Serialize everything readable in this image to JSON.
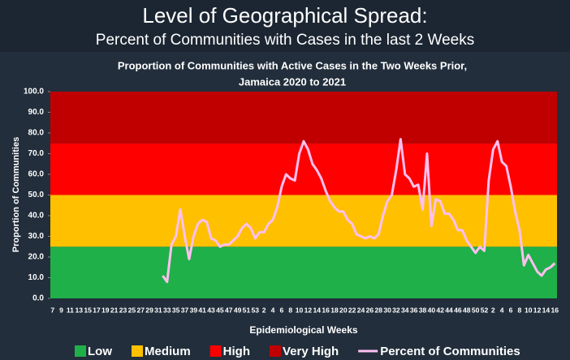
{
  "chart_data": {
    "type": "line",
    "title": "Level of Geographical Spread:",
    "subtitle": "Percent of Communities with Cases in the last 2 Weeks",
    "chart_title": [
      "Proportion of Communities with Active Cases in the Two Weeks Prior,",
      "Jamaica 2020 to 2021"
    ],
    "y_label": "Proportion of Communities",
    "x_label": "Epidemiological Weeks",
    "categories": [
      "7",
      null,
      "9",
      null,
      "11",
      null,
      "13",
      null,
      "15",
      null,
      "17",
      null,
      "19",
      null,
      "21",
      null,
      "23",
      null,
      "25",
      null,
      "27",
      null,
      "29",
      null,
      "31",
      null,
      "33",
      null,
      "35",
      null,
      "37",
      null,
      "39",
      null,
      "41",
      null,
      "43",
      null,
      "45",
      null,
      "47",
      null,
      "49",
      null,
      "51",
      null,
      "53",
      null,
      "2",
      null,
      "4",
      null,
      "6",
      null,
      "8",
      null,
      "10",
      null,
      "12",
      null,
      "14",
      null,
      "16",
      null,
      "18",
      null,
      "20",
      null,
      "22",
      null,
      "24",
      null,
      "26",
      null,
      "28",
      null,
      "30",
      null,
      "32",
      null,
      "34",
      null,
      "36",
      null,
      "38",
      null,
      "40",
      null,
      "42",
      null,
      "44",
      null,
      "46",
      null,
      "48",
      null,
      "50",
      null,
      "52",
      null,
      "2",
      null,
      "4",
      null,
      "6",
      null,
      "8",
      null,
      "10",
      null,
      "12",
      null,
      "14",
      null,
      "16"
    ],
    "series": [
      {
        "name": "Percent of Communities",
        "color": "#ffc0f0",
        "values": [
          null,
          null,
          null,
          null,
          null,
          null,
          null,
          null,
          null,
          null,
          null,
          null,
          null,
          null,
          null,
          null,
          null,
          null,
          null,
          null,
          null,
          null,
          null,
          null,
          null,
          11,
          8,
          26,
          30,
          43,
          30,
          19,
          30,
          36,
          38,
          37,
          29,
          28,
          25,
          26,
          26,
          28,
          30,
          34,
          36,
          34,
          29,
          32,
          32,
          36,
          38,
          44,
          54,
          60,
          58,
          57,
          70,
          76,
          72,
          65,
          62,
          58,
          52,
          47,
          44,
          42,
          42,
          38,
          36,
          31,
          30,
          29,
          30,
          29,
          31,
          40,
          47,
          50,
          62,
          77,
          60,
          58,
          54,
          55,
          43,
          70,
          35,
          48,
          47,
          41,
          41,
          38,
          33,
          33,
          28,
          25,
          22,
          25,
          23,
          57,
          72,
          76,
          66,
          64,
          54,
          42,
          33,
          16,
          21,
          17,
          13,
          11,
          14,
          15,
          17
        ]
      }
    ],
    "bands": [
      {
        "name": "Low",
        "color": "#20b04a",
        "from": 0,
        "to": 25
      },
      {
        "name": "Medium",
        "color": "#ffc000",
        "from": 25,
        "to": 50
      },
      {
        "name": "High",
        "color": "#ff0000",
        "from": 50,
        "to": 75
      },
      {
        "name": "Very High",
        "color": "#c00000",
        "from": 75,
        "to": 100
      }
    ],
    "ylim": [
      0,
      100
    ],
    "yticks": [
      {
        "value": 0,
        "label": "0.0"
      },
      {
        "value": 10,
        "label": "10.0"
      },
      {
        "value": 20,
        "label": "20.0"
      },
      {
        "value": 30,
        "label": "30.0"
      },
      {
        "value": 40,
        "label": "40.0"
      },
      {
        "value": 50,
        "label": "50.0"
      },
      {
        "value": 60,
        "label": "60.0"
      },
      {
        "value": 70,
        "label": "70.0"
      },
      {
        "value": 80,
        "label": "80.0"
      },
      {
        "value": 90,
        "label": "90.0"
      },
      {
        "value": 100,
        "label": "100.0"
      }
    ]
  }
}
